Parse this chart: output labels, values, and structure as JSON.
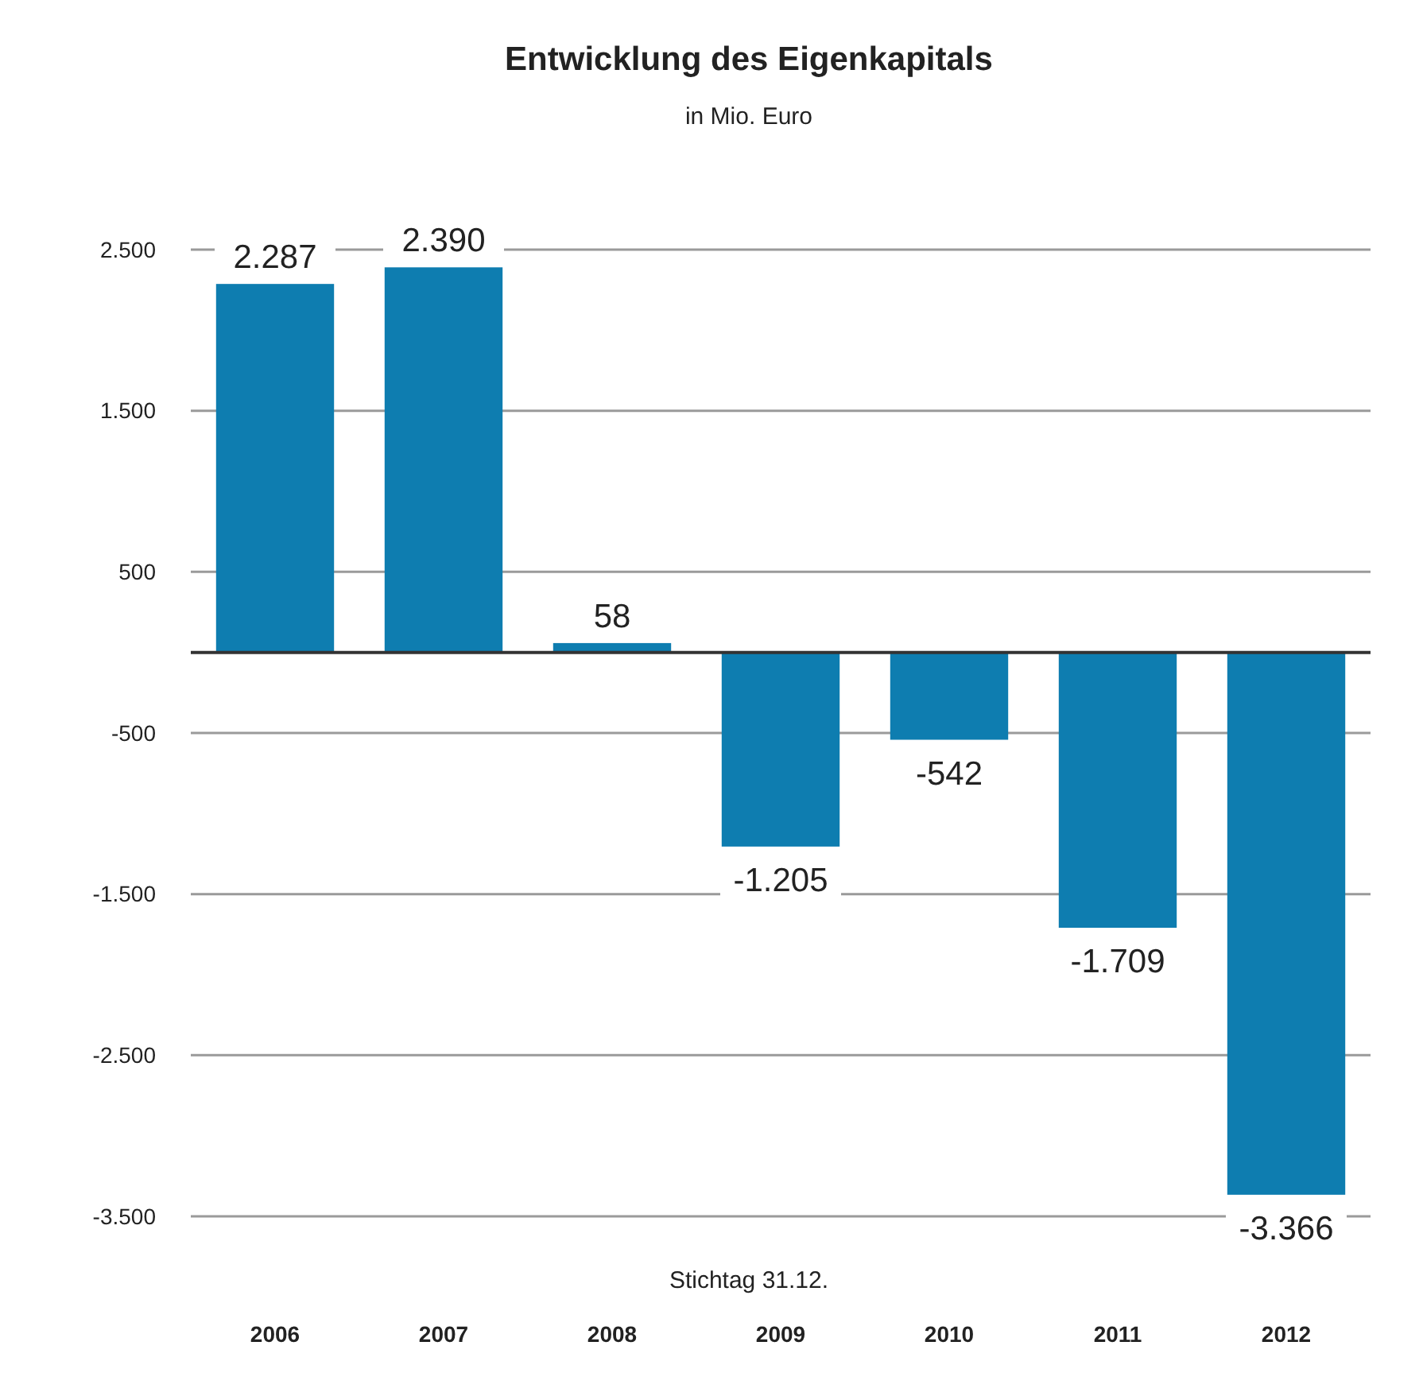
{
  "chart_data": {
    "type": "bar",
    "title": "Entwicklung des Eigenkapitals",
    "subtitle": "in Mio. Euro",
    "xlabel": "Stichtag 31.12.",
    "categories": [
      "2006",
      "2007",
      "2008",
      "2009",
      "2010",
      "2011",
      "2012"
    ],
    "values": [
      2287,
      2390,
      58,
      -1205,
      -542,
      -1709,
      -3366
    ],
    "value_labels": [
      "2.287",
      "2.390",
      "58",
      "-1.205",
      "-542",
      "-1.709",
      "-3.366"
    ],
    "color": "#0e7db0",
    "ylim": [
      -3500,
      2500
    ],
    "yticks": [
      {
        "value": 2500,
        "label": "2.500"
      },
      {
        "value": 1500,
        "label": "1.500"
      },
      {
        "value": 500,
        "label": "500"
      },
      {
        "value": -500,
        "label": "-500"
      },
      {
        "value": -1500,
        "label": "-1.500"
      },
      {
        "value": -2500,
        "label": "-2.500"
      },
      {
        "value": -3500,
        "label": "-3.500"
      }
    ],
    "grid": "y"
  }
}
